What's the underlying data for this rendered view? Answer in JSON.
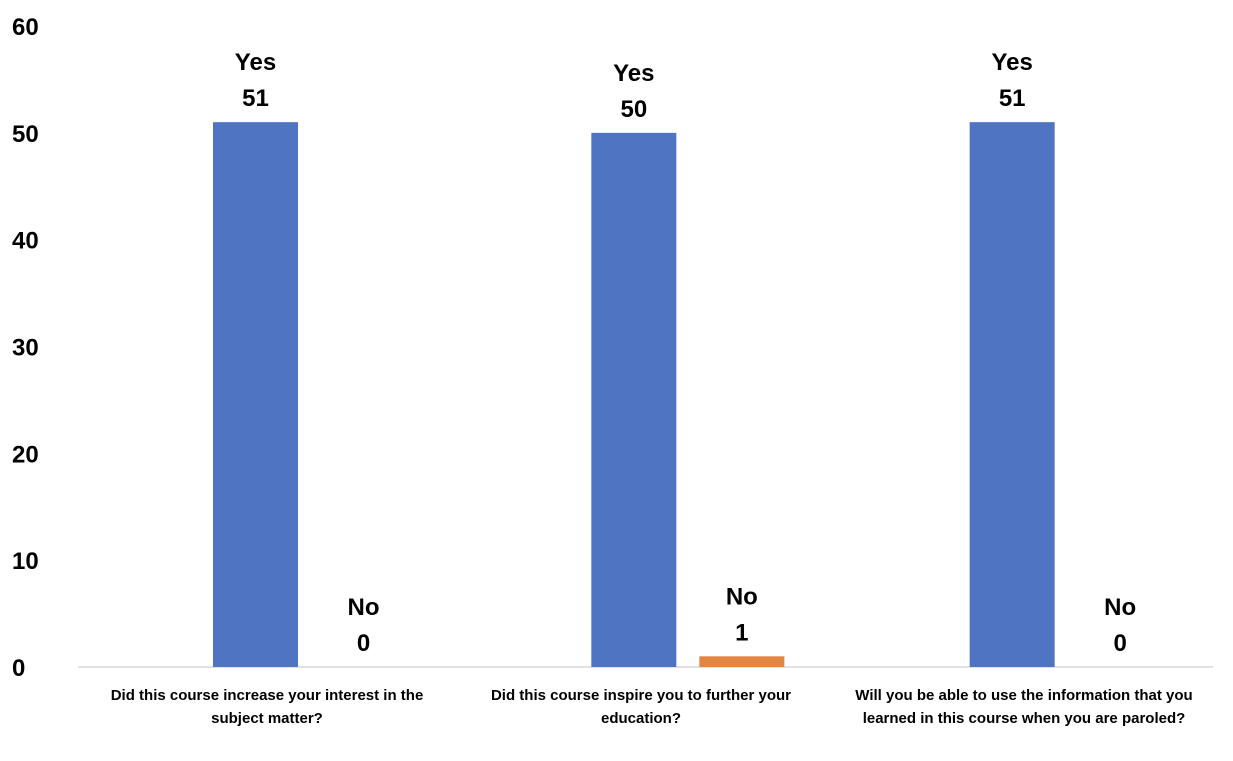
{
  "chart_data": {
    "type": "bar",
    "categories": [
      "Did this course increase your interest in the subject matter?",
      "Did this course inspire you to further your education?",
      "Will you be able to use the information that you learned in this course when you are paroled?"
    ],
    "series": [
      {
        "name": "Yes",
        "values": [
          51,
          50,
          51
        ],
        "color": "#4f75c2"
      },
      {
        "name": "No",
        "values": [
          0,
          1,
          0
        ],
        "color": "#e28743"
      }
    ],
    "ylim": [
      0,
      60
    ],
    "yticks": [
      0,
      10,
      20,
      30,
      40,
      50,
      60
    ],
    "grid": false,
    "legend": "none",
    "data_labels": "series name and value above each bar"
  }
}
